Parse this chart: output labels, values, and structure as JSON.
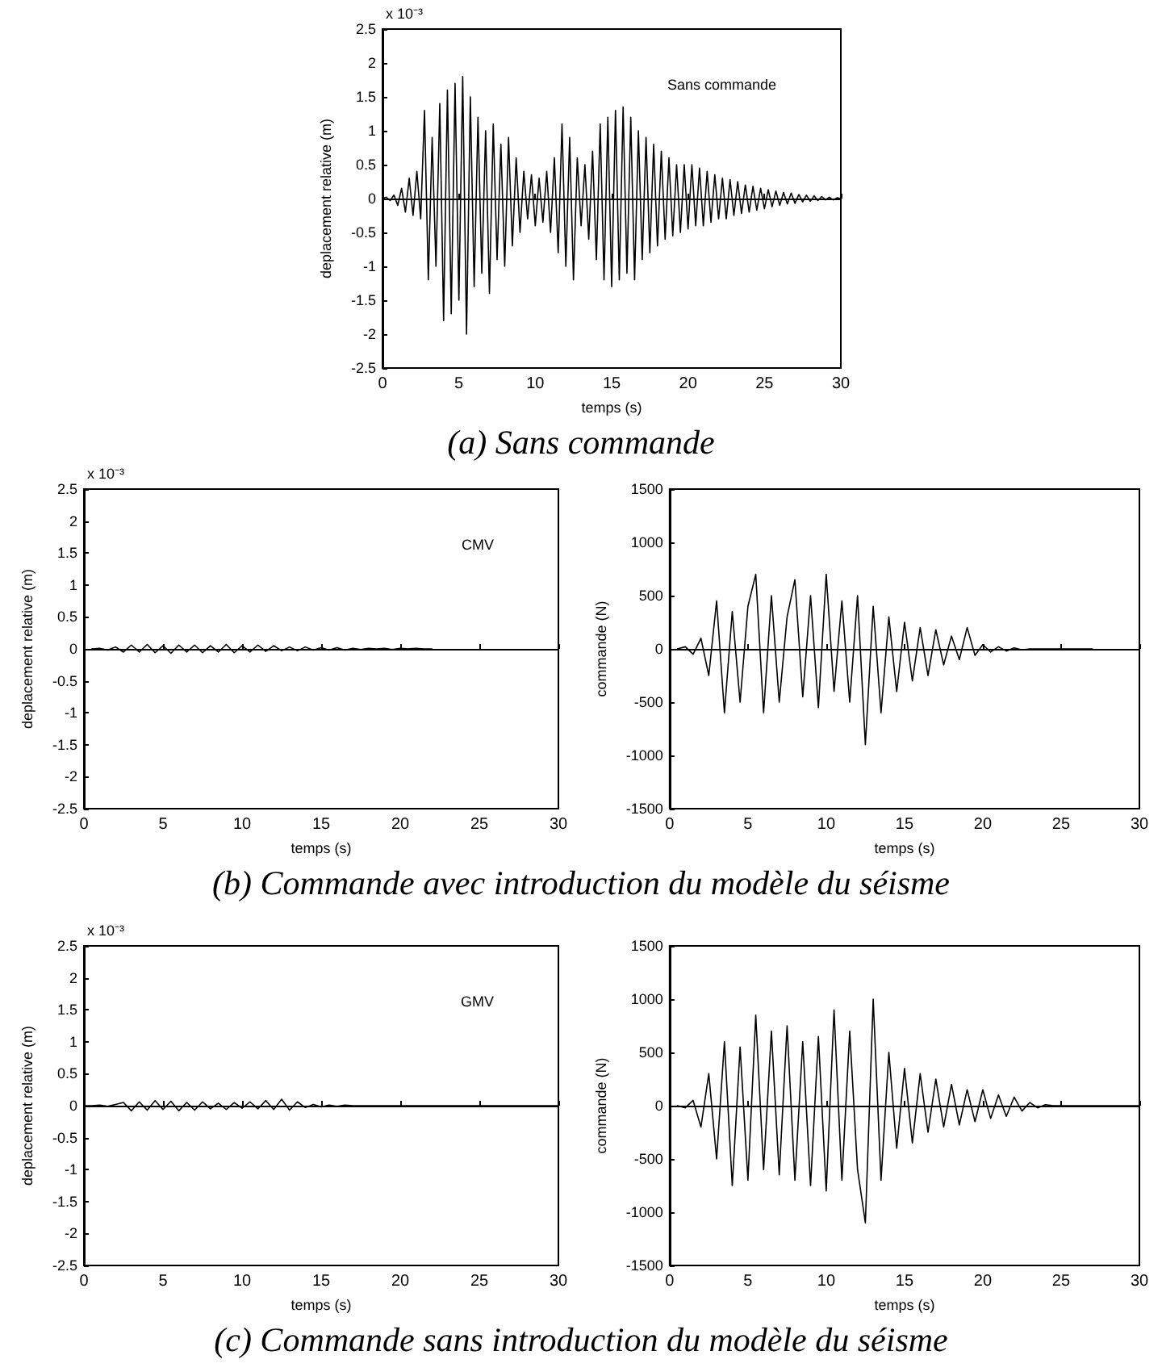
{
  "chart_data": [
    {
      "type": "line",
      "title": "(a) Sans commande",
      "xlabel": "temps (s)",
      "ylabel": "deplacement relative (m)",
      "annotations": [
        "x 10⁻³",
        "Sans commande"
      ],
      "xlim": [
        0,
        30
      ],
      "xticks": [
        0,
        5,
        10,
        15,
        20,
        25,
        30
      ],
      "ylim": [
        -2.5,
        2.5
      ],
      "yticks": [
        -2.5,
        -2,
        -1.5,
        -1,
        -0.5,
        0,
        0.5,
        1,
        1.5,
        2,
        2.5
      ],
      "marker": "none",
      "line_style": "solid",
      "series": [
        {
          "color": "#000000",
          "x": [
            0,
            0.25,
            0.5,
            0.75,
            1,
            1.25,
            1.5,
            1.75,
            2,
            2.25,
            2.5,
            2.75,
            3,
            3.25,
            3.5,
            3.75,
            4,
            4.25,
            4.5,
            4.75,
            5,
            5.25,
            5.5,
            5.75,
            6,
            6.25,
            6.5,
            6.75,
            7,
            7.25,
            7.5,
            7.75,
            8,
            8.25,
            8.5,
            8.75,
            9,
            9.25,
            9.5,
            9.75,
            10,
            10.25,
            10.5,
            10.75,
            11,
            11.25,
            11.5,
            11.75,
            12,
            12.25,
            12.5,
            12.75,
            13,
            13.25,
            13.5,
            13.75,
            14,
            14.25,
            14.5,
            14.75,
            15,
            15.25,
            15.5,
            15.75,
            16,
            16.25,
            16.5,
            16.75,
            17,
            17.25,
            17.5,
            17.75,
            18,
            18.25,
            18.5,
            18.75,
            19,
            19.25,
            19.5,
            19.75,
            20,
            20.25,
            20.5,
            20.75,
            21,
            21.25,
            21.5,
            21.75,
            22,
            22.25,
            22.5,
            22.75,
            23,
            23.25,
            23.5,
            23.75,
            24,
            24.25,
            24.5,
            24.75,
            25,
            25.25,
            25.5,
            25.75,
            26,
            26.25,
            26.5,
            26.75,
            27,
            27.25,
            27.5,
            27.75,
            28,
            28.25,
            28.5,
            28.75,
            29,
            29.25,
            29.5,
            29.75,
            30
          ],
          "values": [
            0,
            0.02,
            -0.03,
            0.05,
            -0.1,
            0.15,
            -0.2,
            0.3,
            -0.25,
            0.4,
            -0.3,
            1.3,
            -1.2,
            0.9,
            -1.0,
            1.4,
            -1.8,
            1.6,
            -1.7,
            1.7,
            -1.5,
            1.8,
            -2.0,
            1.5,
            -1.3,
            1.2,
            -1.1,
            1.0,
            -1.4,
            1.1,
            -0.9,
            0.8,
            -1.0,
            0.9,
            -0.7,
            0.6,
            -0.5,
            0.4,
            -0.3,
            0.35,
            -0.4,
            0.3,
            -0.35,
            0.4,
            -0.5,
            0.6,
            -0.8,
            1.1,
            -1.0,
            0.9,
            -1.2,
            0.6,
            -0.4,
            0.5,
            -0.6,
            0.7,
            -0.9,
            1.1,
            -1.2,
            1.2,
            -1.3,
            1.3,
            -1.2,
            1.35,
            -1.1,
            1.2,
            -1.2,
            1.0,
            -0.9,
            0.9,
            -0.8,
            0.8,
            -0.7,
            0.7,
            -0.6,
            0.6,
            -0.55,
            0.5,
            -0.5,
            0.5,
            -0.45,
            0.5,
            -0.4,
            0.45,
            -0.4,
            0.4,
            -0.35,
            0.35,
            -0.3,
            0.3,
            -0.3,
            0.28,
            -0.25,
            0.25,
            -0.22,
            0.2,
            -0.2,
            0.18,
            -0.17,
            0.15,
            -0.15,
            0.13,
            -0.12,
            0.11,
            -0.1,
            0.09,
            -0.08,
            0.08,
            -0.07,
            0.06,
            -0.05,
            0.05,
            -0.04,
            0.04,
            -0.03,
            0.03,
            -0.02,
            0.02,
            -0.02,
            0.01,
            0
          ]
        }
      ]
    },
    {
      "type": "line",
      "title": "(b) Commande avec introduction du modèle du séisme",
      "xlabel": "temps (s)",
      "ylabel": "deplacement relative (m)",
      "annotations": [
        "x 10⁻³",
        "CMV"
      ],
      "xlim": [
        0,
        30
      ],
      "xticks": [
        0,
        5,
        10,
        15,
        20,
        25,
        30
      ],
      "ylim": [
        -2.5,
        2.5
      ],
      "yticks": [
        -2.5,
        -2,
        -1.5,
        -1,
        -0.5,
        0,
        0.5,
        1,
        1.5,
        2,
        2.5
      ],
      "marker": "none",
      "line_style": "solid",
      "series": [
        {
          "color": "#000000",
          "x": [
            0.5,
            1,
            1.5,
            2,
            2.5,
            3,
            3.5,
            4,
            4.5,
            5,
            5.5,
            6,
            6.5,
            7,
            7.5,
            8,
            8.5,
            9,
            9.5,
            10,
            10.5,
            11,
            11.5,
            12,
            12.5,
            13,
            13.5,
            14,
            14.5,
            15,
            15.5,
            16,
            16.5,
            17,
            17.5,
            18,
            18.5,
            19,
            19.5,
            20,
            20.5,
            21,
            21.5,
            22
          ],
          "values": [
            0,
            0.01,
            -0.02,
            0.03,
            -0.05,
            0.06,
            -0.05,
            0.07,
            -0.06,
            0.05,
            -0.07,
            0.06,
            -0.05,
            0.06,
            -0.06,
            0.05,
            -0.05,
            0.07,
            -0.06,
            0.05,
            -0.05,
            0.06,
            -0.04,
            0.05,
            -0.03,
            0.03,
            -0.03,
            0.03,
            -0.02,
            0.02,
            -0.02,
            0.02,
            -0.02,
            0.01,
            -0.01,
            0.01,
            0,
            0.01,
            -0.01,
            0.01,
            0,
            0.01,
            0,
            0
          ]
        }
      ]
    },
    {
      "type": "line",
      "xlabel": "temps (s)",
      "ylabel": "commande (N)",
      "xlim": [
        0,
        30
      ],
      "xticks": [
        0,
        5,
        10,
        15,
        20,
        25,
        30
      ],
      "ylim": [
        -1500,
        1500
      ],
      "yticks": [
        -1500,
        -1000,
        -500,
        0,
        500,
        1000,
        1500
      ],
      "marker": "none",
      "line_style": "solid",
      "series": [
        {
          "color": "#000000",
          "x": [
            0.5,
            1,
            1.5,
            2,
            2.5,
            3,
            3.5,
            4,
            4.5,
            5,
            5.5,
            6,
            6.5,
            7,
            7.5,
            8,
            8.5,
            9,
            9.5,
            10,
            10.5,
            11,
            11.5,
            12,
            12.5,
            13,
            13.5,
            14,
            14.5,
            15,
            15.5,
            16,
            16.5,
            17,
            17.5,
            18,
            18.5,
            19,
            19.5,
            20,
            20.5,
            21,
            21.5,
            22,
            22.5,
            23,
            23.5,
            24,
            24.5,
            25,
            25.5,
            26,
            26.5,
            27
          ],
          "values": [
            0,
            20,
            -50,
            100,
            -250,
            450,
            -600,
            350,
            -500,
            400,
            700,
            -600,
            500,
            -500,
            300,
            650,
            -450,
            500,
            -550,
            700,
            -400,
            450,
            -500,
            500,
            -900,
            400,
            -600,
            300,
            -400,
            250,
            -300,
            200,
            -250,
            180,
            -150,
            120,
            -100,
            200,
            -60,
            40,
            -30,
            20,
            -20,
            10,
            -10,
            0,
            0,
            0,
            0,
            0,
            0,
            0,
            0,
            0
          ]
        }
      ]
    },
    {
      "type": "line",
      "title": "(c) Commande sans introduction du modèle du séisme",
      "xlabel": "temps (s)",
      "ylabel": "deplacement relative (m)",
      "annotations": [
        "x 10⁻³",
        "GMV"
      ],
      "xlim": [
        0,
        30
      ],
      "xticks": [
        0,
        5,
        10,
        15,
        20,
        25,
        30
      ],
      "ylim": [
        -2.5,
        2.5
      ],
      "yticks": [
        -2.5,
        -2,
        -1.5,
        -1,
        -0.5,
        0,
        0.5,
        1,
        1.5,
        2,
        2.5
      ],
      "marker": "none",
      "line_style": "solid",
      "series": [
        {
          "color": "#000000",
          "x": [
            0,
            0.5,
            1,
            1.5,
            2,
            2.5,
            3,
            3.5,
            4,
            4.5,
            5,
            5.5,
            6,
            6.5,
            7,
            7.5,
            8,
            8.5,
            9,
            9.5,
            10,
            10.5,
            11,
            11.5,
            12,
            12.5,
            13,
            13.5,
            14,
            14.5,
            15,
            15.5,
            16,
            16.5,
            17,
            17.5,
            18,
            18.5,
            19,
            19.5,
            20,
            20.5,
            21,
            21.5,
            22,
            22.5,
            23,
            23.5,
            24,
            24.5,
            25,
            25.5,
            26,
            26.5,
            27,
            27.5,
            28,
            28.5,
            29,
            29.5,
            30
          ],
          "values": [
            0,
            0,
            0.01,
            -0.01,
            0.02,
            0.05,
            -0.08,
            0.06,
            -0.07,
            0.08,
            -0.06,
            0.07,
            -0.08,
            0.05,
            -0.07,
            0.06,
            -0.05,
            0.04,
            -0.06,
            0.05,
            -0.04,
            0.06,
            -0.05,
            0.08,
            -0.06,
            0.1,
            -0.07,
            0.06,
            -0.03,
            0.02,
            -0.02,
            0.01,
            -0.01,
            0.01,
            0,
            0,
            0,
            0,
            0,
            0,
            0,
            0,
            0,
            0,
            0,
            0,
            0,
            0,
            0,
            0,
            0,
            0,
            0,
            0,
            0,
            0,
            0,
            0,
            0,
            0,
            0
          ]
        }
      ]
    },
    {
      "type": "line",
      "xlabel": "temps (s)",
      "ylabel": "commande (N)",
      "xlim": [
        0,
        30
      ],
      "xticks": [
        0,
        5,
        10,
        15,
        20,
        25,
        30
      ],
      "ylim": [
        -1500,
        1500
      ],
      "yticks": [
        -1500,
        -1000,
        -500,
        0,
        500,
        1000,
        1500
      ],
      "marker": "none",
      "line_style": "solid",
      "series": [
        {
          "color": "#000000",
          "x": [
            0.5,
            1,
            1.5,
            2,
            2.5,
            3,
            3.5,
            4,
            4.5,
            5,
            5.5,
            6,
            6.5,
            7,
            7.5,
            8,
            8.5,
            9,
            9.5,
            10,
            10.5,
            11,
            11.5,
            12,
            12.5,
            13,
            13.5,
            14,
            14.5,
            15,
            15.5,
            16,
            16.5,
            17,
            17.5,
            18,
            18.5,
            19,
            19.5,
            20,
            20.5,
            21,
            21.5,
            22,
            22.5,
            23,
            23.5,
            24,
            24.5,
            25,
            25.5,
            26,
            26.5,
            27,
            27.5,
            28,
            28.5,
            29,
            29.5,
            30
          ],
          "values": [
            0,
            -20,
            50,
            -200,
            300,
            -500,
            600,
            -750,
            550,
            -700,
            850,
            -600,
            700,
            -650,
            750,
            -700,
            600,
            -750,
            650,
            -800,
            900,
            -700,
            700,
            -600,
            -1100,
            1000,
            -700,
            500,
            -400,
            350,
            -350,
            300,
            -250,
            250,
            -200,
            200,
            -180,
            150,
            -150,
            150,
            -120,
            100,
            -100,
            80,
            -50,
            30,
            -20,
            10,
            0,
            0,
            0,
            0,
            0,
            0,
            0,
            0,
            0,
            0,
            0,
            0
          ]
        }
      ]
    }
  ]
}
